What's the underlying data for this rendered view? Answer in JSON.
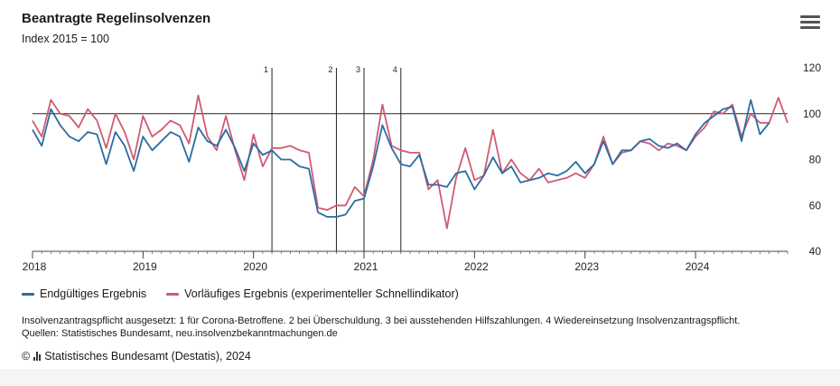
{
  "header": {
    "title": "Beantragte Regelinsolvenzen",
    "subtitle": "Index 2015 = 100"
  },
  "menu": {
    "icon": "hamburger-menu-icon"
  },
  "legend": {
    "items": [
      {
        "label": "Endgültiges Ergebnis",
        "color": "#2b6ca3"
      },
      {
        "label": "Vorläufiges Ergebnis (experimenteller Schnellindikator)",
        "color": "#d05a72"
      }
    ]
  },
  "footnote": {
    "line1": "Insolvenzantragspflicht ausgesetzt: 1 für Corona-Betroffene. 2 bei Überschuldung. 3 bei ausstehenden Hilfszahlungen. 4 Wiedereinsetzung Insolvenzantragspflicht.",
    "line2": "Quellen: Statistisches Bundesamt, neu.insolvenzbekanntmachungen.de"
  },
  "copyright": {
    "text": "Statistisches Bundesamt (Destatis), 2024",
    "symbol": "©"
  },
  "chart_data": {
    "type": "line",
    "title": "Beantragte Regelinsolvenzen",
    "subtitle": "Index 2015 = 100",
    "x_start": "2018-01",
    "x_end": "2024-11",
    "x_ticks": [
      "2018",
      "2019",
      "2020",
      "2021",
      "2022",
      "2023",
      "2024"
    ],
    "y_ticks": [
      40,
      60,
      80,
      100,
      120
    ],
    "ylim": [
      40,
      120
    ],
    "reference_line": 100,
    "grid": false,
    "legend_position": "bottom-left",
    "events": [
      {
        "label": "1",
        "date": "2020-03"
      },
      {
        "label": "2",
        "date": "2020-10"
      },
      {
        "label": "3",
        "date": "2021-01"
      },
      {
        "label": "4",
        "date": "2021-05"
      }
    ],
    "series": [
      {
        "name": "Endgültiges Ergebnis",
        "color": "#2b6ca3",
        "start": "2018-01",
        "values": [
          93,
          86,
          102,
          95,
          90,
          88,
          92,
          91,
          78,
          92,
          86,
          75,
          90,
          84,
          88,
          92,
          90,
          79,
          94,
          88,
          86,
          93,
          85,
          75,
          87,
          82,
          84,
          80,
          80,
          77,
          76,
          57,
          55,
          55,
          56,
          62,
          63,
          77,
          95,
          85,
          78,
          77,
          82,
          69,
          69,
          68,
          74,
          75,
          67,
          73,
          81,
          74,
          77,
          70,
          71,
          72,
          74,
          73,
          75,
          79,
          74,
          78,
          88,
          78,
          84,
          84,
          88,
          89,
          86,
          85,
          87,
          84,
          91,
          96,
          99,
          102,
          103,
          88,
          106,
          91,
          96
        ]
      },
      {
        "name": "Vorläufiges Ergebnis (experimenteller Schnellindikator)",
        "color": "#d05a72",
        "start": "2018-01",
        "values": [
          97,
          90,
          106,
          100,
          99,
          94,
          102,
          97,
          85,
          100,
          92,
          80,
          99,
          90,
          93,
          97,
          95,
          87,
          108,
          90,
          84,
          99,
          84,
          71,
          91,
          77,
          85,
          85,
          86,
          84,
          83,
          59,
          58,
          60,
          60,
          68,
          64,
          80,
          104,
          86,
          84,
          83,
          83,
          67,
          71,
          50,
          72,
          85,
          71,
          73,
          93,
          74,
          80,
          74,
          71,
          76,
          70,
          71,
          72,
          74,
          72,
          78,
          90,
          78,
          83,
          84,
          88,
          87,
          84,
          87,
          86,
          84,
          90,
          94,
          101,
          100,
          104,
          90,
          100,
          96,
          96,
          107,
          96
        ]
      }
    ]
  }
}
